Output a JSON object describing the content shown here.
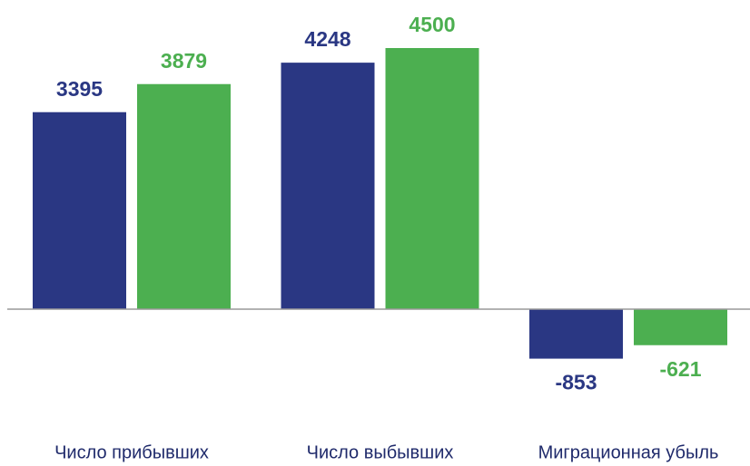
{
  "chart_data": {
    "type": "bar",
    "categories": [
      "Число прибывших",
      "Число выбывших",
      "Миграционная убыль"
    ],
    "series": [
      {
        "color": "#2a3783",
        "values": [
          3395,
          4248,
          -853
        ]
      },
      {
        "color": "#4caf50",
        "values": [
          3879,
          4500,
          -621
        ]
      }
    ]
  }
}
